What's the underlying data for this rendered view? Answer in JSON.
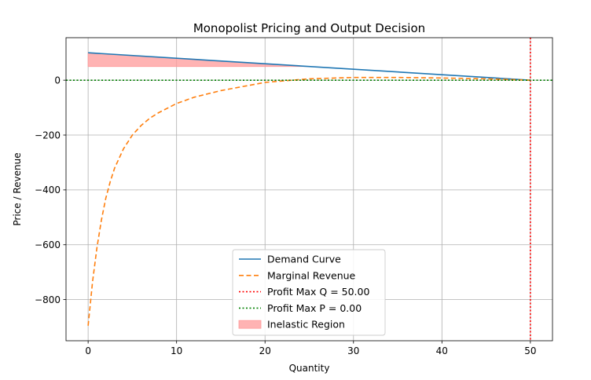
{
  "chart_data": {
    "type": "line",
    "title": "Monopolist Pricing and Output Decision",
    "xlabel": "Quantity",
    "ylabel": "Price / Revenue",
    "xlim": [
      -2.5,
      52.5
    ],
    "ylim": [
      -950,
      155
    ],
    "xticks": [
      0,
      10,
      20,
      30,
      40,
      50
    ],
    "yticks": [
      -800,
      -600,
      -400,
      -200,
      0
    ],
    "grid": true,
    "legend_position": "lower center",
    "colors": {
      "demand": "#1f77b4",
      "marginal_revenue": "#ff7f0e",
      "profit_max_q": "#ff0000",
      "profit_max_p": "#008000",
      "inelastic_region": "#ff9999"
    },
    "series": [
      {
        "name": "Demand Curve",
        "style": "solid",
        "color": "#1f77b4",
        "x": [
          0,
          50
        ],
        "y": [
          100,
          0
        ]
      },
      {
        "name": "Marginal Revenue",
        "style": "dashed",
        "color": "#ff7f0e",
        "x": [
          0,
          0.5,
          1,
          1.5,
          2,
          2.5,
          3,
          4,
          5,
          6,
          7,
          8,
          10,
          12,
          15,
          20,
          25,
          30,
          35,
          40,
          45,
          50
        ],
        "y": [
          -895,
          -735,
          -610,
          -510,
          -430,
          -370,
          -320,
          -250,
          -200,
          -165,
          -138,
          -118,
          -85,
          -62,
          -38,
          -8,
          5,
          10,
          10,
          8,
          5,
          0
        ]
      }
    ],
    "reference_lines": [
      {
        "name": "Profit Max Q = 50.00",
        "orientation": "vertical",
        "value": 50,
        "style": "dotted",
        "color": "#ff0000"
      },
      {
        "name": "Profit Max P = 0.00",
        "orientation": "horizontal",
        "value": 0,
        "style": "dotted",
        "color": "#008000"
      }
    ],
    "fill_region": {
      "name": "Inelastic Region",
      "color": "#ff9999",
      "x": [
        0,
        25
      ],
      "y_lower": 50,
      "y_upper_line": "Demand Curve"
    },
    "legend": [
      "Demand Curve",
      "Marginal Revenue",
      "Profit Max Q = 50.00",
      "Profit Max P = 0.00",
      "Inelastic Region"
    ]
  }
}
